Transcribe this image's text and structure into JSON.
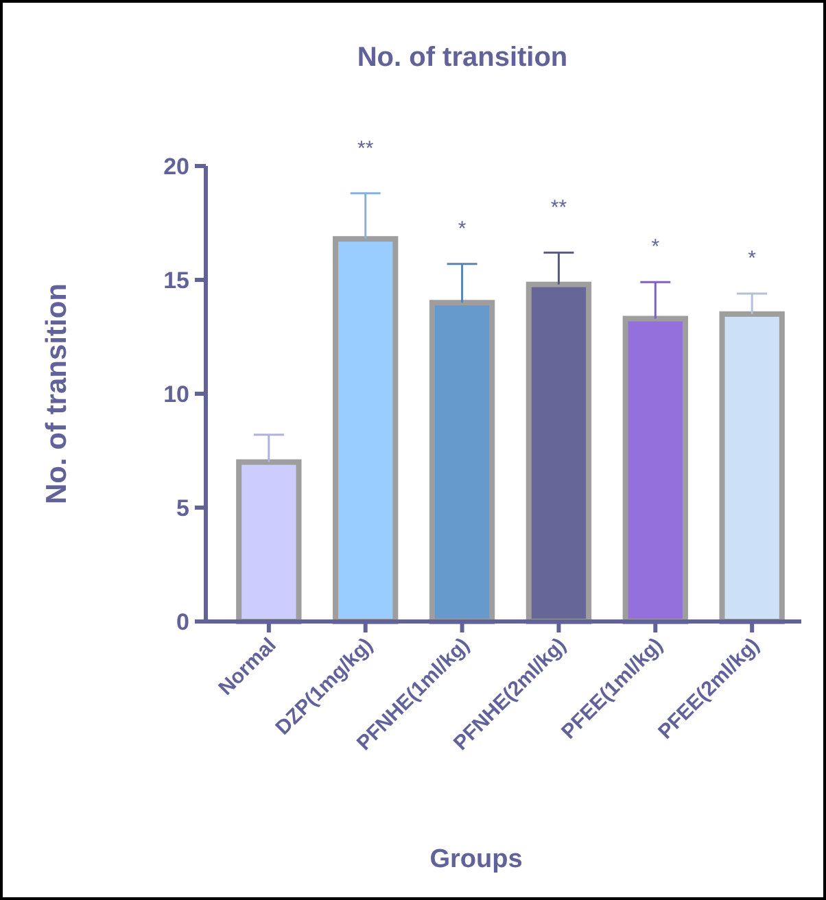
{
  "chart_data": {
    "type": "bar",
    "title": "No. of transition",
    "xlabel": "Groups",
    "ylabel": "No. of transition",
    "categories": [
      "Normal",
      "DZP(1mg/kg)",
      "PFNHE(1ml/kg)",
      "PFNHE(2ml/kg)",
      "PFEE(1ml/kg)",
      "PFEE(2ml/kg)"
    ],
    "values": [
      7.0,
      16.8,
      14.0,
      14.8,
      13.3,
      13.5
    ],
    "colors": [
      "#ccccff",
      "#99ccff",
      "#6699cc",
      "#666699",
      "#9370db",
      "#cce0f8"
    ],
    "errors": [
      [
        7.0,
        8.2
      ],
      [
        16.8,
        18.8
      ],
      [
        14.0,
        15.7
      ],
      [
        14.8,
        16.2
      ],
      [
        13.3,
        14.9
      ],
      [
        13.5,
        14.4
      ]
    ],
    "annotations": [
      "**",
      "*",
      "**",
      "*",
      "*"
    ],
    "ylim": [
      0,
      20
    ],
    "yticks": [
      0,
      5,
      10,
      15,
      20
    ]
  }
}
